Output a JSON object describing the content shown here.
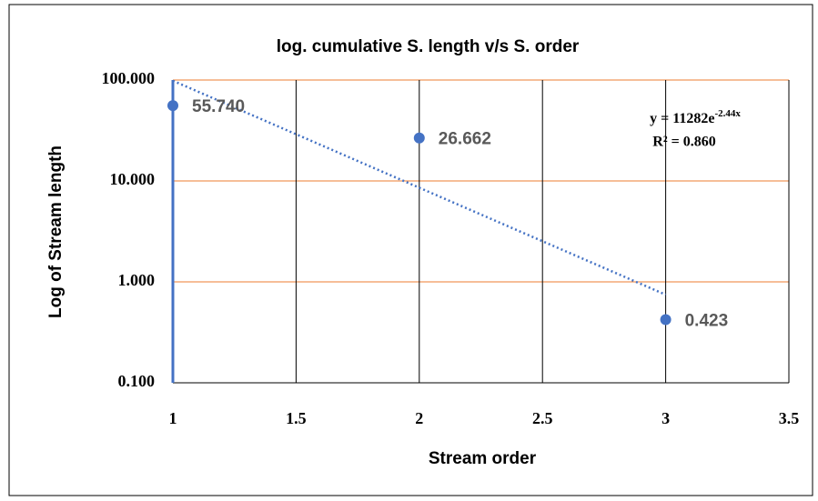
{
  "chart_data": {
    "type": "scatter",
    "title": "log. cumulative S. length v/s S. order",
    "x_label": "Stream order",
    "y_label": "Log of Stream length",
    "x": [
      1,
      2,
      3
    ],
    "values": [
      55.74,
      26.662,
      0.423
    ],
    "value_labels": [
      "55.740",
      "26.662",
      "0.423"
    ],
    "color": "#4472c4",
    "log_y": true,
    "xlim": [
      1,
      3.5
    ],
    "xticks": [
      1,
      1.5,
      2,
      2.5,
      3,
      3.5
    ],
    "ylim": [
      0.1,
      100
    ],
    "yticks": [
      {
        "value": 0.1,
        "label": "0.100"
      },
      {
        "value": 1,
        "label": "1.000"
      },
      {
        "value": 10,
        "label": "10.000"
      },
      {
        "value": 100,
        "label": "100.000"
      }
    ],
    "grid": true,
    "x_grid_color": "#000000",
    "y_grid_color": "#ed7d31",
    "trendline": {
      "kind": "exponential",
      "color": "#4472c4",
      "equation": "y = 11282e",
      "exponent": "-2.44x",
      "r_squared": "R² = 0.860"
    }
  }
}
